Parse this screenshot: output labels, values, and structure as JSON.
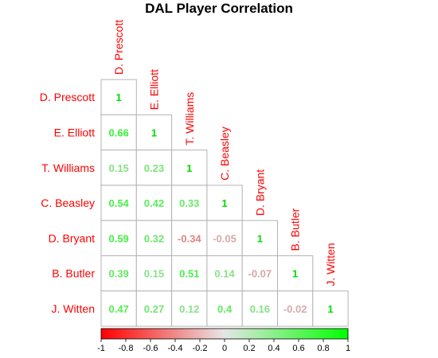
{
  "chart_data": {
    "type": "heatmap",
    "title": "DAL Player Correlation",
    "row_labels": [
      "D. Prescott",
      "E. Elliott",
      "T. Williams",
      "C. Beasley",
      "D. Bryant",
      "B. Butler",
      "J. Witten"
    ],
    "col_labels": [
      "D. Prescott",
      "E. Elliott",
      "T. Williams",
      "C. Beasley",
      "D. Bryant",
      "B. Butler",
      "J. Witten"
    ],
    "values": [
      [
        1
      ],
      [
        0.66,
        1
      ],
      [
        0.15,
        0.23,
        1
      ],
      [
        0.54,
        0.42,
        0.33,
        1
      ],
      [
        0.59,
        0.32,
        -0.34,
        -0.05,
        1
      ],
      [
        0.39,
        0.15,
        0.51,
        0.14,
        -0.07,
        1
      ],
      [
        0.47,
        0.27,
        0.12,
        0.4,
        0.16,
        -0.02,
        1
      ]
    ],
    "value_labels": [
      [
        "1"
      ],
      [
        "0.66",
        "1"
      ],
      [
        "0.15",
        "0.23",
        "1"
      ],
      [
        "0.54",
        "0.42",
        "0.33",
        "1"
      ],
      [
        "0.59",
        "0.32",
        "-0.34",
        "-0.05",
        "1"
      ],
      [
        "0.39",
        "0.15",
        "0.51",
        "0.14",
        "-0.07",
        "1"
      ],
      [
        "0.47",
        "0.27",
        "0.12",
        "0.4",
        "0.16",
        "-0.02",
        "1"
      ]
    ],
    "color_scale": {
      "min": -1,
      "max": 1,
      "low_color": "#ff0000",
      "mid_color": "#e6e6e6",
      "high_color": "#00ff00",
      "ticks": [
        -1,
        -0.8,
        -0.6,
        -0.4,
        -0.2,
        0,
        0.2,
        0.4,
        0.6,
        0.8,
        1
      ],
      "tick_labels": [
        "-1",
        "-0.8",
        "-0.6",
        "-0.4",
        "-0.2",
        "0",
        "0.2",
        "0.4",
        "0.6",
        "0.8",
        "1"
      ],
      "placement": "bottom"
    },
    "label_color": "#ff0000",
    "layout": "lower-triangle"
  }
}
